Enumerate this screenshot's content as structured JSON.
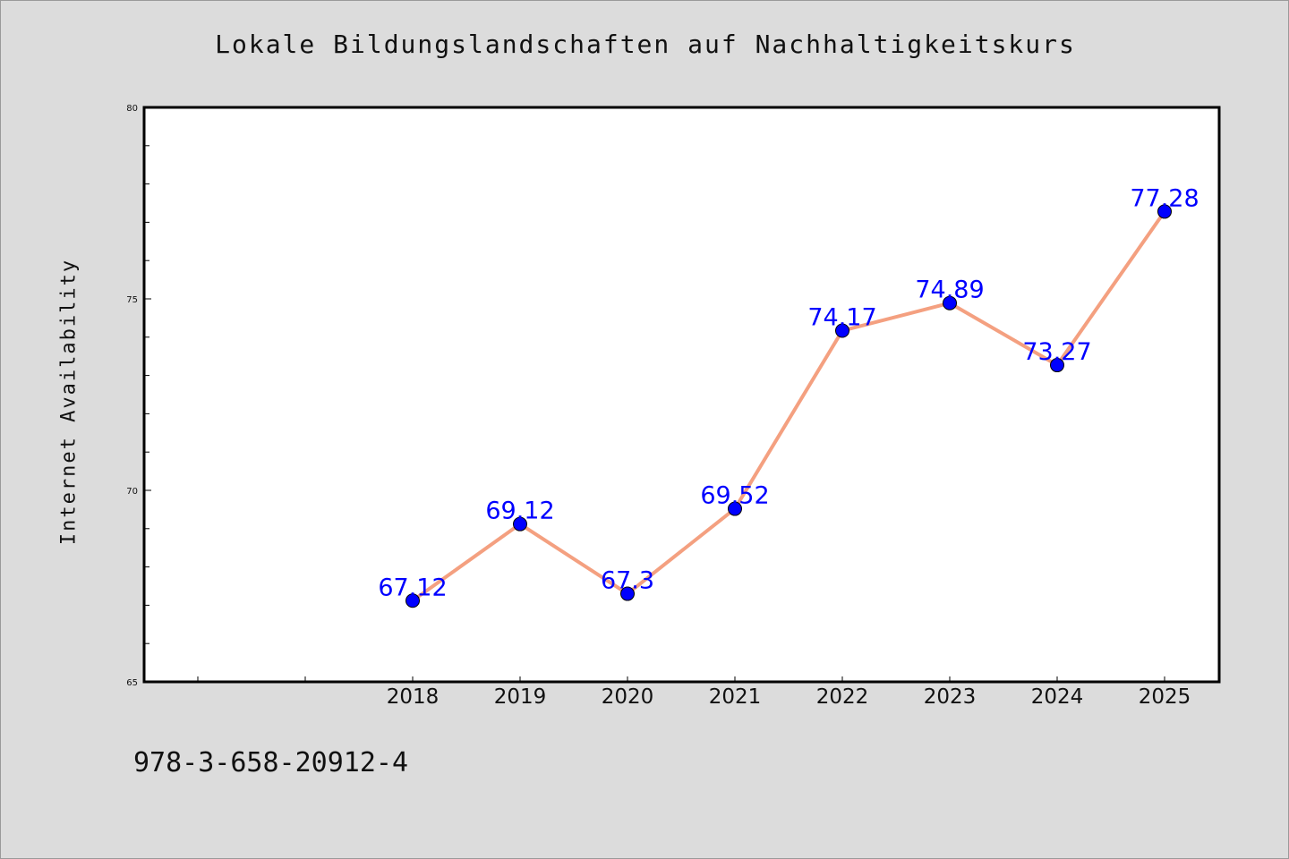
{
  "title": "Lokale Bildungslandschaften auf Nachhaltigkeitskurs",
  "isbn": "978-3-658-20912-4",
  "colors": {
    "background": "#dcdcdc",
    "plot_area": "#ffffff",
    "line": "#f4a080",
    "marker": "#0000ff",
    "data_label": "#0000ff"
  },
  "chart_data": {
    "type": "line",
    "title": "Lokale Bildungslandschaften auf Nachhaltigkeitskurs",
    "xlabel": "",
    "ylabel": "Internet Availability",
    "ylim": [
      65,
      80
    ],
    "y_ticks": [
      65,
      70,
      75,
      80
    ],
    "y_tick_labels": [
      "65",
      "70",
      "75",
      "80"
    ],
    "y_minor_step": 1,
    "x_extra_minor_ticks": 2,
    "categories": [
      "2018",
      "2019",
      "2020",
      "2021",
      "2022",
      "2023",
      "2024",
      "2025"
    ],
    "values": [
      67.12,
      69.12,
      67.3,
      69.52,
      74.17,
      74.89,
      73.27,
      77.28
    ],
    "data_labels": [
      "67.12",
      "69.12",
      "67.3",
      "69.52",
      "74.17",
      "74.89",
      "73.27",
      "77.28"
    ],
    "grid": false,
    "legend": "none"
  }
}
